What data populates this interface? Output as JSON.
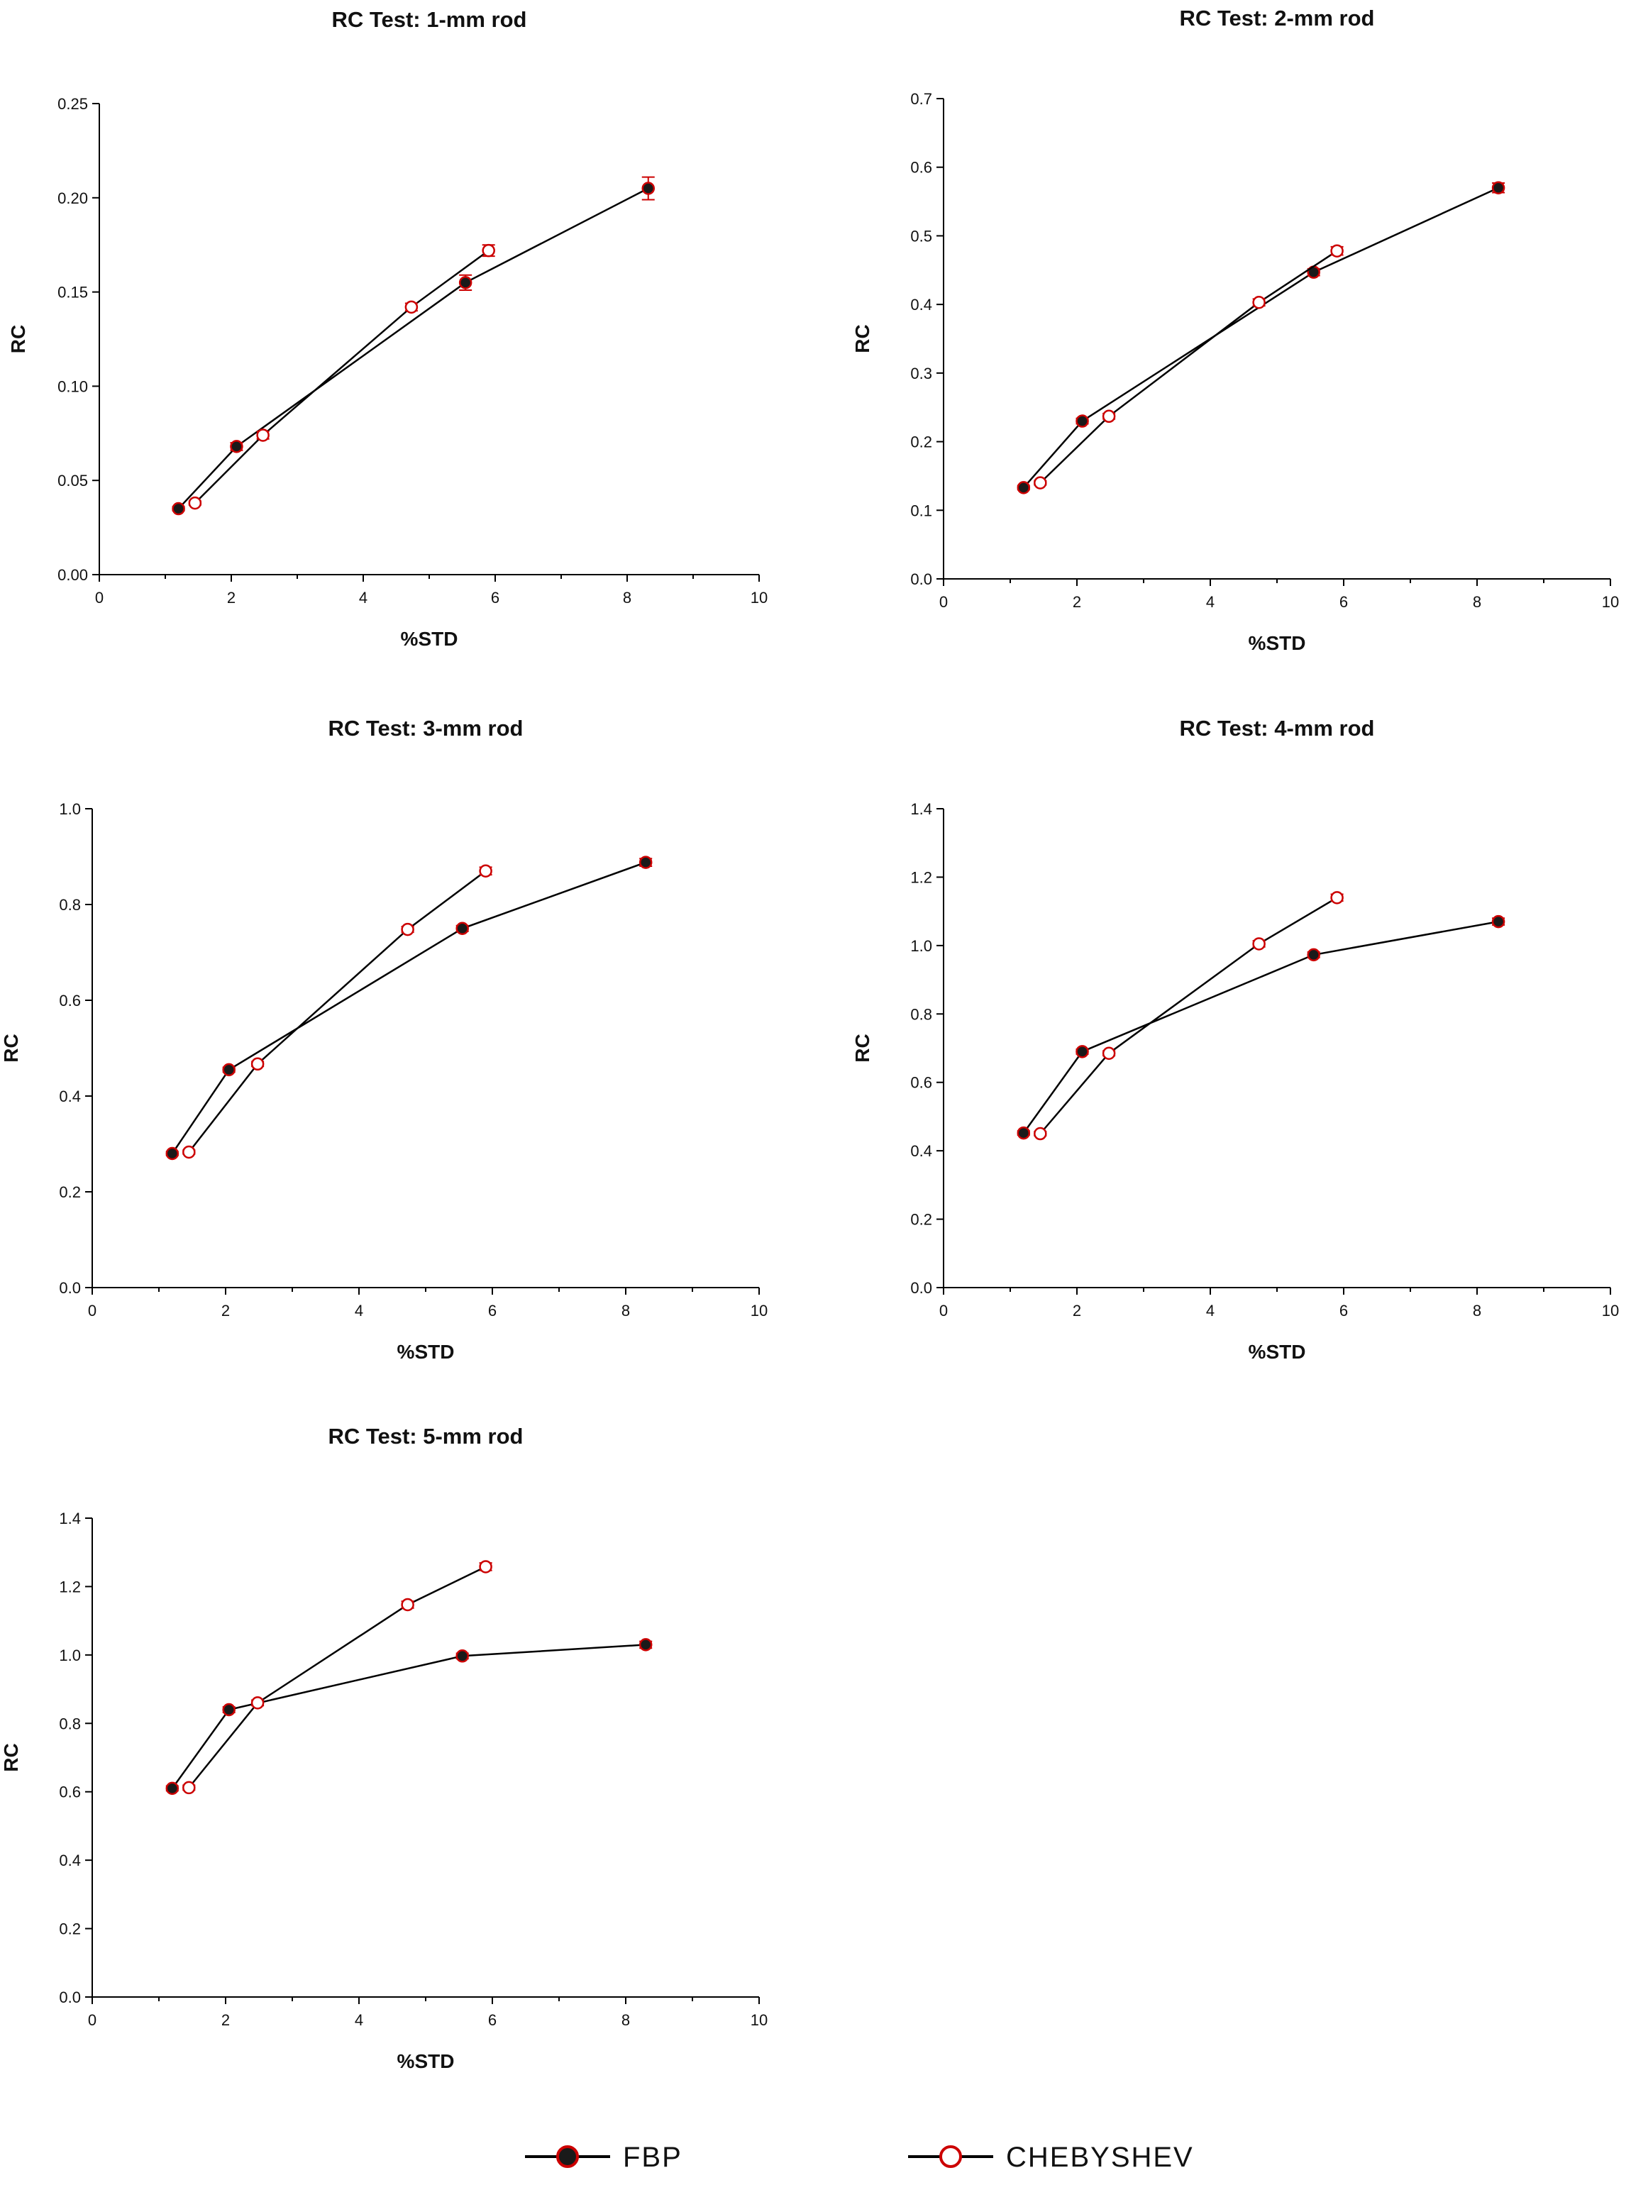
{
  "legend": {
    "fbp": "FBP",
    "chebyshev": "CHEBYSHEV"
  },
  "colors": {
    "axis": "#000000",
    "line": "#000000",
    "fbp_fill": "#1a1a1a",
    "fbp_edge": "#cc0000",
    "cheb_fill": "#ffffff",
    "cheb_edge": "#cc0000",
    "errorbar": "#cc0000"
  },
  "chart_data": [
    {
      "type": "line",
      "title": "RC Test: 1-mm rod",
      "xlabel": "%STD",
      "ylabel": "RC",
      "xlim": [
        0,
        10
      ],
      "ylim": [
        0,
        0.25
      ],
      "xticks": [
        "0",
        "2",
        "4",
        "6",
        "8",
        "10"
      ],
      "yticks": [
        "0.00",
        "0.05",
        "0.10",
        "0.15",
        "0.20",
        "0.25"
      ],
      "series": [
        {
          "name": "FBP",
          "x": [
            1.2,
            2.08,
            5.55,
            8.32
          ],
          "y": [
            0.035,
            0.068,
            0.155,
            0.205
          ],
          "yerr": [
            0.001,
            0.002,
            0.004,
            0.006
          ]
        },
        {
          "name": "CHEBYSHEV",
          "x": [
            1.45,
            2.48,
            4.73,
            5.9
          ],
          "y": [
            0.038,
            0.074,
            0.142,
            0.172
          ],
          "yerr": [
            0.001,
            0.002,
            0.002,
            0.003
          ]
        }
      ]
    },
    {
      "type": "line",
      "title": "RC Test: 2-mm rod",
      "xlabel": "%STD",
      "ylabel": "RC",
      "xlim": [
        0,
        10
      ],
      "ylim": [
        0,
        0.7
      ],
      "xticks": [
        "0",
        "2",
        "4",
        "6",
        "8",
        "10"
      ],
      "yticks": [
        "0.0",
        "0.1",
        "0.2",
        "0.3",
        "0.4",
        "0.5",
        "0.6",
        "0.7"
      ],
      "series": [
        {
          "name": "FBP",
          "x": [
            1.2,
            2.08,
            5.55,
            8.32
          ],
          "y": [
            0.133,
            0.23,
            0.447,
            0.57
          ],
          "yerr": [
            0.003,
            0.004,
            0.005,
            0.007
          ]
        },
        {
          "name": "CHEBYSHEV",
          "x": [
            1.45,
            2.48,
            4.73,
            5.9
          ],
          "y": [
            0.14,
            0.237,
            0.403,
            0.478
          ],
          "yerr": [
            0.003,
            0.004,
            0.005,
            0.006
          ]
        }
      ]
    },
    {
      "type": "line",
      "title": "RC Test: 3-mm rod",
      "xlabel": "%STD",
      "ylabel": "RC",
      "xlim": [
        0,
        10
      ],
      "ylim": [
        0,
        1.0
      ],
      "xticks": [
        "0",
        "2",
        "4",
        "6",
        "8",
        "10"
      ],
      "yticks": [
        "0.0",
        "0.2",
        "0.4",
        "0.6",
        "0.8",
        "1.0"
      ],
      "series": [
        {
          "name": "FBP",
          "x": [
            1.2,
            2.05,
            5.55,
            8.3
          ],
          "y": [
            0.28,
            0.455,
            0.75,
            0.888
          ],
          "yerr": [
            0.004,
            0.005,
            0.006,
            0.008
          ]
        },
        {
          "name": "CHEBYSHEV",
          "x": [
            1.45,
            2.48,
            4.73,
            5.9
          ],
          "y": [
            0.283,
            0.467,
            0.748,
            0.87
          ],
          "yerr": [
            0.004,
            0.005,
            0.006,
            0.008
          ]
        }
      ]
    },
    {
      "type": "line",
      "title": "RC Test: 4-mm rod",
      "xlabel": "%STD",
      "ylabel": "RC",
      "xlim": [
        0,
        10
      ],
      "ylim": [
        0,
        1.4
      ],
      "xticks": [
        "0",
        "2",
        "4",
        "6",
        "8",
        "10"
      ],
      "yticks": [
        "0.0",
        "0.2",
        "0.4",
        "0.6",
        "0.8",
        "1.0",
        "1.2",
        "1.4"
      ],
      "series": [
        {
          "name": "FBP",
          "x": [
            1.2,
            2.08,
            5.55,
            8.32
          ],
          "y": [
            0.452,
            0.69,
            0.973,
            1.07
          ],
          "yerr": [
            0.006,
            0.007,
            0.008,
            0.01
          ]
        },
        {
          "name": "CHEBYSHEV",
          "x": [
            1.45,
            2.48,
            4.73,
            5.9
          ],
          "y": [
            0.45,
            0.685,
            1.005,
            1.14
          ],
          "yerr": [
            0.006,
            0.007,
            0.009,
            0.01
          ]
        }
      ]
    },
    {
      "type": "line",
      "title": "RC Test: 5-mm rod",
      "xlabel": "%STD",
      "ylabel": "RC",
      "xlim": [
        0,
        10
      ],
      "ylim": [
        0,
        1.4
      ],
      "xticks": [
        "0",
        "2",
        "4",
        "6",
        "8",
        "10"
      ],
      "yticks": [
        "0.0",
        "0.2",
        "0.4",
        "0.6",
        "0.8",
        "1.0",
        "1.2",
        "1.4"
      ],
      "series": [
        {
          "name": "FBP",
          "x": [
            1.2,
            2.05,
            5.55,
            8.3
          ],
          "y": [
            0.61,
            0.84,
            0.997,
            1.03
          ],
          "yerr": [
            0.007,
            0.008,
            0.008,
            0.01
          ]
        },
        {
          "name": "CHEBYSHEV",
          "x": [
            1.45,
            2.48,
            4.73,
            5.9
          ],
          "y": [
            0.612,
            0.86,
            1.147,
            1.258
          ],
          "yerr": [
            0.007,
            0.008,
            0.01,
            0.011
          ]
        }
      ]
    }
  ]
}
